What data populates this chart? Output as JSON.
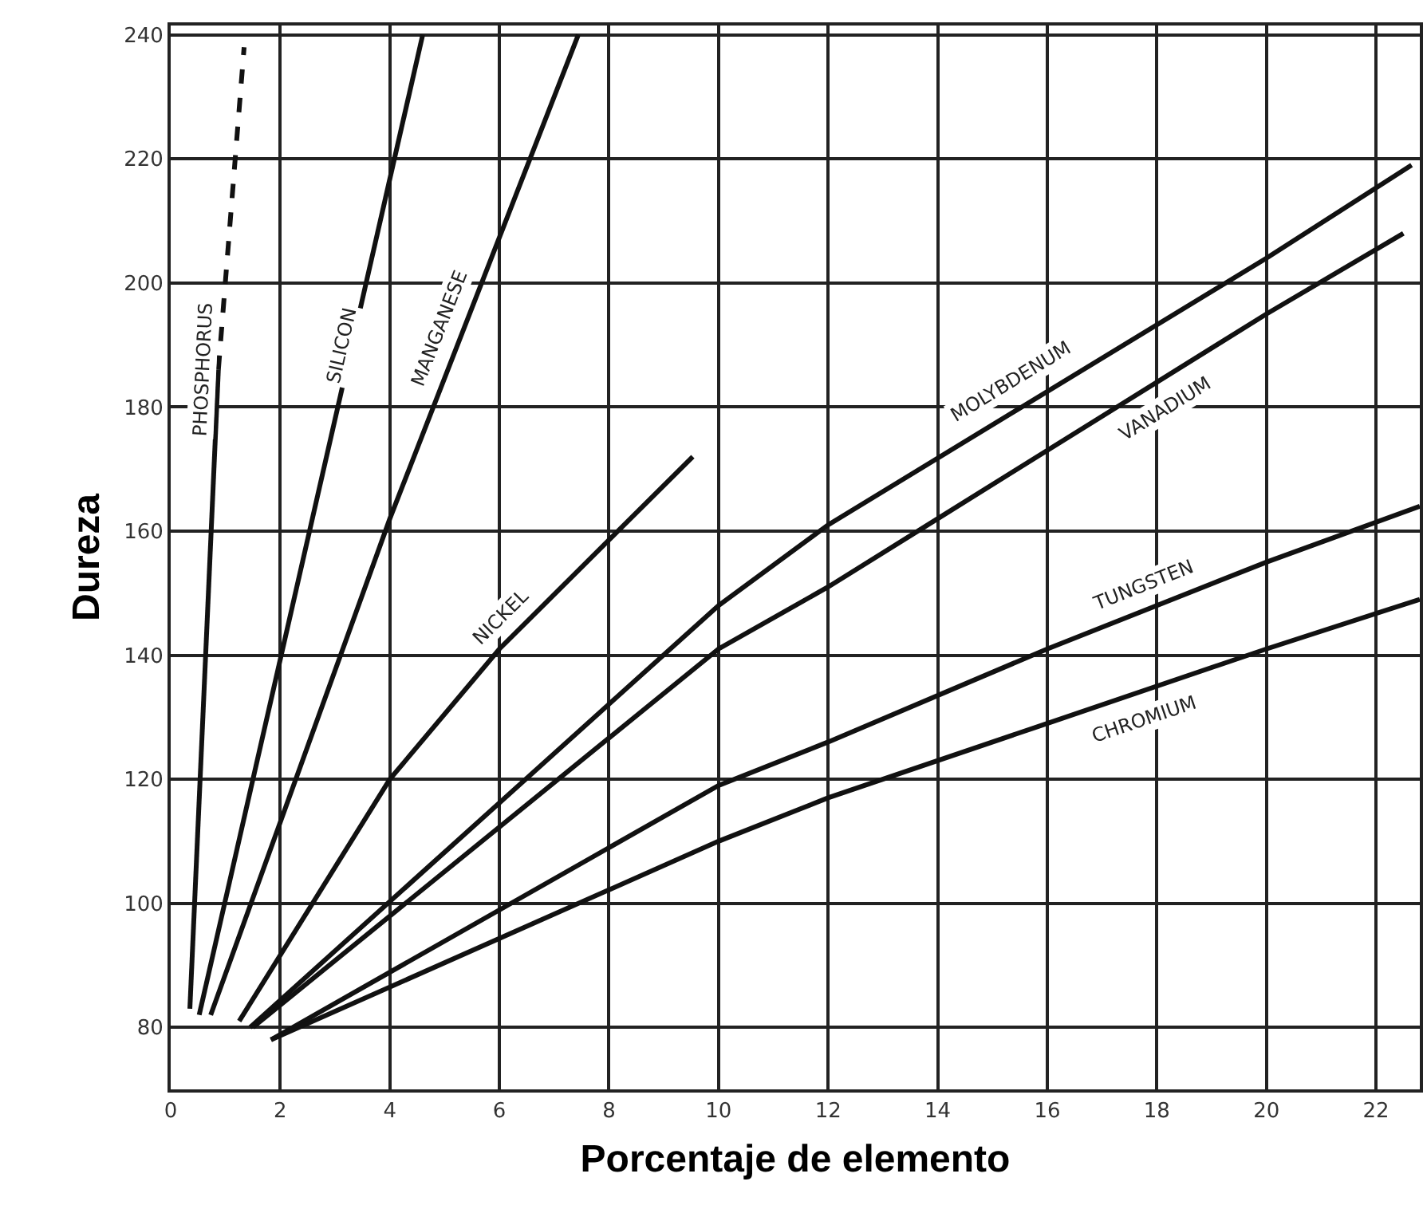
{
  "chart_data": {
    "type": "line",
    "xlabel": "Porcentaje de elemento",
    "ylabel": "Dureza",
    "xlim": [
      0,
      22.8
    ],
    "ylim": [
      70,
      241.5
    ],
    "xticks": [
      0,
      2,
      4,
      6,
      8,
      10,
      12,
      14,
      16,
      18,
      20,
      22
    ],
    "yticks": [
      80,
      100,
      120,
      140,
      160,
      180,
      200,
      220,
      240
    ],
    "grid": true,
    "legend": false,
    "marker": "none",
    "line_style": "solid",
    "series": [
      {
        "name": "PHOSPHORUS",
        "color": "#111111",
        "x": [
          0.35,
          0.87
        ],
        "values": [
          83,
          186
        ]
      },
      {
        "color": "#111111",
        "line_style": "dashed",
        "x": [
          0.87,
          1.34
        ],
        "values": [
          186,
          238
        ]
      },
      {
        "name": "SILICON",
        "color": "#111111",
        "x": [
          0.52,
          4.6
        ],
        "values": [
          82,
          240
        ]
      },
      {
        "name": "MANGANESE",
        "color": "#111111",
        "x": [
          0.73,
          4,
          7.44
        ],
        "values": [
          82,
          162,
          240
        ]
      },
      {
        "name": "NICKEL",
        "color": "#111111",
        "x": [
          1.25,
          4,
          6,
          9.53
        ],
        "values": [
          81,
          120,
          141,
          172
        ]
      },
      {
        "name": "MOLYBDENUM",
        "color": "#111111",
        "x": [
          1.45,
          10,
          12,
          20,
          22.65
        ],
        "values": [
          80,
          148,
          161,
          204,
          219
        ]
      },
      {
        "name": "VANADIUM",
        "color": "#111111",
        "x": [
          1.5,
          10,
          12,
          14,
          20,
          22.5
        ],
        "values": [
          80,
          141,
          151,
          162,
          195,
          208
        ]
      },
      {
        "name": "TUNGSTEN",
        "color": "#111111",
        "x": [
          1.83,
          10,
          12,
          16,
          20,
          22.8
        ],
        "values": [
          78,
          119,
          126,
          141,
          155,
          164
        ]
      },
      {
        "name": "CHROMIUM",
        "color": "#111111",
        "x": [
          1.83,
          10,
          12,
          16,
          20,
          22.8
        ],
        "values": [
          78,
          110,
          117,
          129,
          141,
          149
        ]
      }
    ]
  }
}
